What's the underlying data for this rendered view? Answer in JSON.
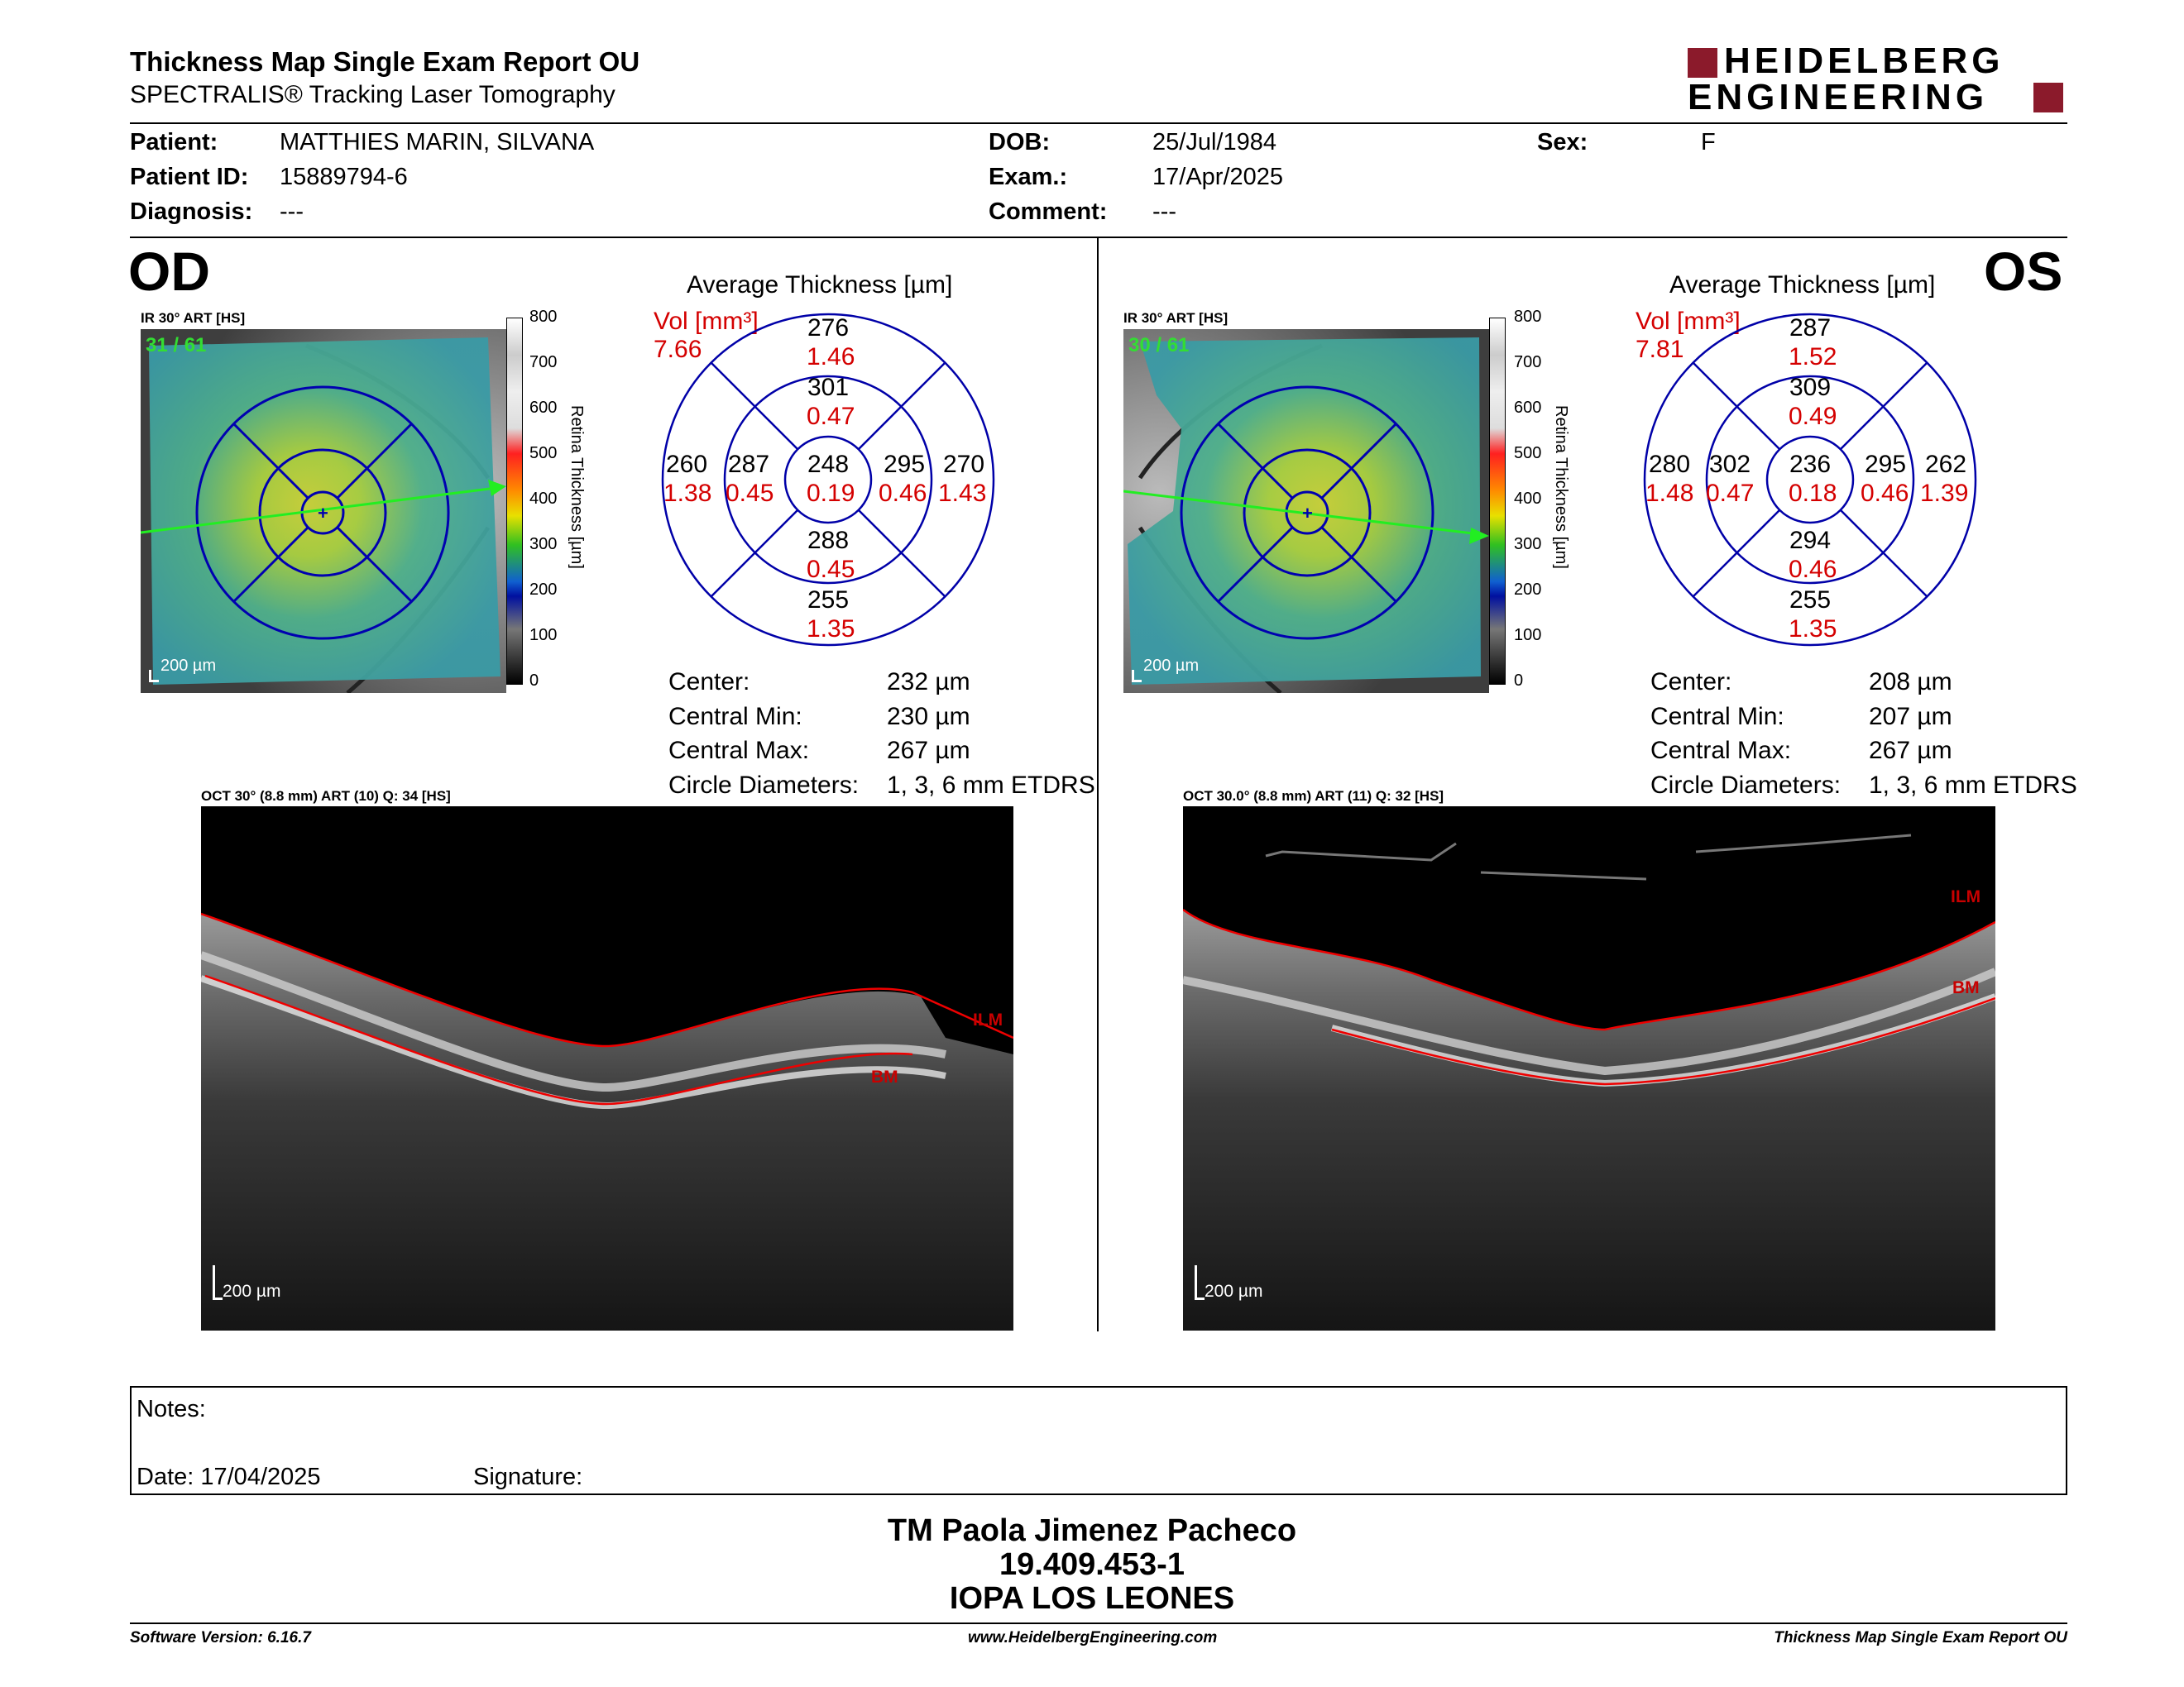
{
  "header": {
    "title": "Thickness Map Single Exam Report OU",
    "subtitle": "SPECTRALIS® Tracking Laser Tomography",
    "logo_line1": "HEIDELBERG",
    "logo_line2": "ENGINEERING"
  },
  "patient": {
    "patient_label": "Patient:",
    "patient_value": "MATTHIES MARIN, SILVANA",
    "id_label": "Patient ID:",
    "id_value": "15889794-6",
    "diagnosis_label": "Diagnosis:",
    "diagnosis_value": "---",
    "dob_label": "DOB:",
    "dob_value": "25/Jul/1984",
    "exam_label": "Exam.:",
    "exam_value": "17/Apr/2025",
    "comment_label": "Comment:",
    "comment_value": "---",
    "sex_label": "Sex:",
    "sex_value": "F"
  },
  "od": {
    "eye": "OD",
    "ir_label": "IR 30° ART [HS]",
    "frames": "31 / 61",
    "scale": "200 µm",
    "avg_title": "Average Thickness [µm]",
    "vol_label": "Vol [mm³]",
    "vol_total": "7.66",
    "center": {
      "t": "248",
      "v": "0.19"
    },
    "inner_sup": {
      "t": "301",
      "v": "0.47"
    },
    "inner_inf": {
      "t": "288",
      "v": "0.45"
    },
    "inner_left": {
      "t": "287",
      "v": "0.45"
    },
    "inner_right": {
      "t": "295",
      "v": "0.46"
    },
    "outer_sup": {
      "t": "276",
      "v": "1.46"
    },
    "outer_inf": {
      "t": "255",
      "v": "1.35"
    },
    "outer_left": {
      "t": "260",
      "v": "1.38"
    },
    "outer_right": {
      "t": "270",
      "v": "1.43"
    },
    "stats": {
      "center_label": "Center:",
      "center_value": "232 µm",
      "min_label": "Central Min:",
      "min_value": "230 µm",
      "max_label": "Central Max:",
      "max_value": "267 µm",
      "circ_label": "Circle Diameters:",
      "circ_value": "1, 3, 6 mm ETDRS"
    },
    "oct_label": "OCT 30° (8.8 mm) ART (10) Q: 34 [HS]",
    "ilm": "ILM",
    "bm": "BM"
  },
  "os": {
    "eye": "OS",
    "ir_label": "IR 30° ART [HS]",
    "frames": "30 / 61",
    "scale": "200 µm",
    "avg_title": "Average Thickness [µm]",
    "vol_label": "Vol [mm³]",
    "vol_total": "7.81",
    "center": {
      "t": "236",
      "v": "0.18"
    },
    "inner_sup": {
      "t": "309",
      "v": "0.49"
    },
    "inner_inf": {
      "t": "294",
      "v": "0.46"
    },
    "inner_left": {
      "t": "302",
      "v": "0.47"
    },
    "inner_right": {
      "t": "295",
      "v": "0.46"
    },
    "outer_sup": {
      "t": "287",
      "v": "1.52"
    },
    "outer_inf": {
      "t": "255",
      "v": "1.35"
    },
    "outer_left": {
      "t": "280",
      "v": "1.48"
    },
    "outer_right": {
      "t": "262",
      "v": "1.39"
    },
    "stats": {
      "center_label": "Center:",
      "center_value": "208 µm",
      "min_label": "Central Min:",
      "min_value": "207 µm",
      "max_label": "Central Max:",
      "max_value": "267 µm",
      "circ_label": "Circle Diameters:",
      "circ_value": "1, 3, 6 mm ETDRS"
    },
    "oct_label": "OCT 30.0° (8.8 mm) ART (11) Q: 32 [HS]",
    "ilm": "ILM",
    "bm": "BM"
  },
  "colorbar": {
    "title": "Retina Thickness [µm]",
    "ticks": [
      "800",
      "700",
      "600",
      "500",
      "400",
      "300",
      "200",
      "100",
      "0"
    ]
  },
  "notes": {
    "notes_label": "Notes:",
    "date_label": "Date: 17/04/2025",
    "signature_label": "Signature:"
  },
  "signoff": {
    "name": "TM Paola Jimenez Pacheco",
    "id": "19.409.453-1",
    "clinic": "IOPA LOS LEONES"
  },
  "footer": {
    "software": "Software Version: 6.16.7",
    "url": "www.HeidelbergEngineering.com",
    "report": "Thickness Map Single Exam Report OU"
  },
  "colors": {
    "logo_red": "#8b1a2b",
    "value_red": "#d40000",
    "grid_blue": "#0000a8",
    "frame_green": "#33dd33"
  }
}
